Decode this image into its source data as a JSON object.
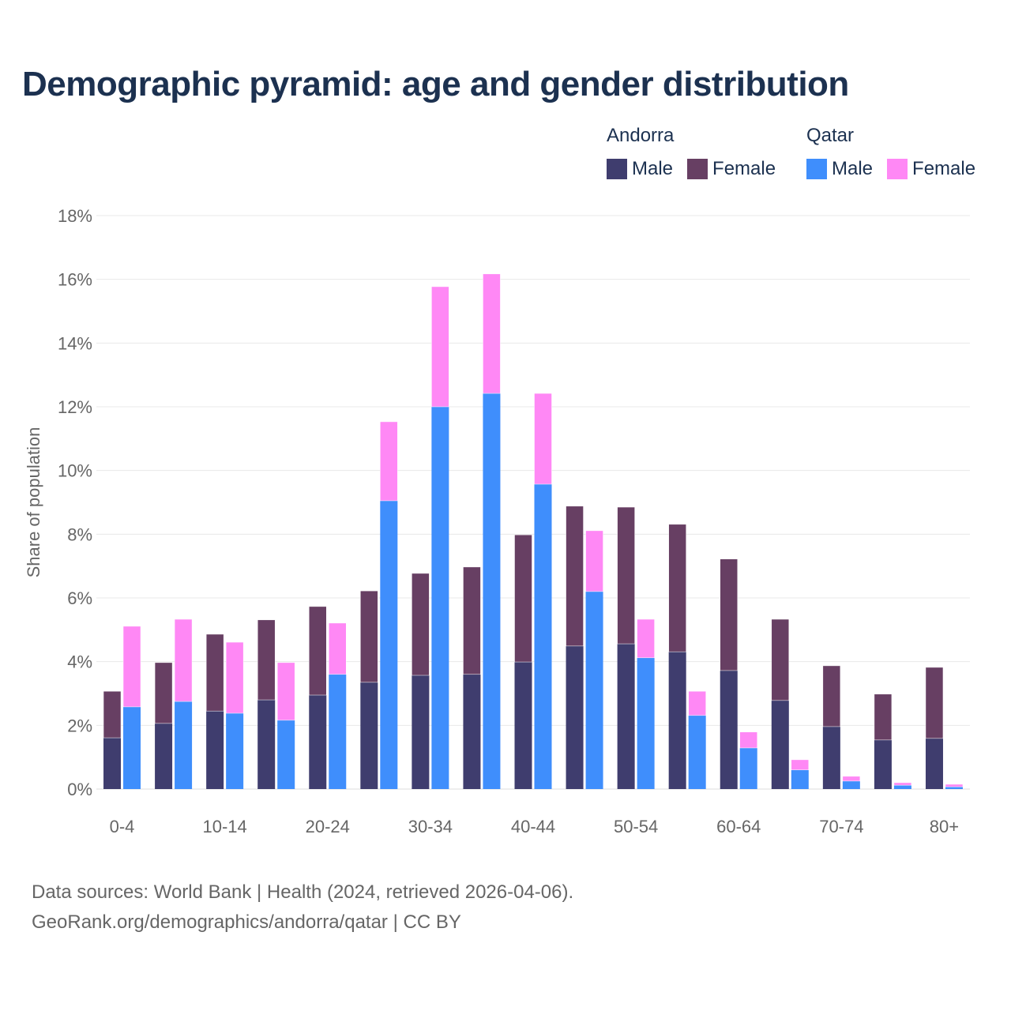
{
  "title": "Demographic pyramid: age and gender distribution",
  "legend": {
    "groups": [
      {
        "name": "Andorra",
        "items": [
          {
            "label": "Male",
            "color": "#3f3d6e"
          },
          {
            "label": "Female",
            "color": "#673f63"
          }
        ]
      },
      {
        "name": "Qatar",
        "items": [
          {
            "label": "Male",
            "color": "#3f8efc"
          },
          {
            "label": "Female",
            "color": "#ff88f5"
          }
        ]
      }
    ]
  },
  "footer": {
    "line1": "Data sources: World Bank | Health (2024, retrieved 2026-04-06).",
    "line2": "GeoRank.org/demographics/andorra/qatar | CC BY"
  },
  "chart_data": {
    "type": "bar",
    "stacked": true,
    "title": "Demographic pyramid: age and gender distribution",
    "xlabel": "",
    "ylabel": "Share of population",
    "ylim": [
      0,
      18
    ],
    "yticks": [
      "0%",
      "2%",
      "4%",
      "6%",
      "8%",
      "10%",
      "12%",
      "14%",
      "16%",
      "18%"
    ],
    "categories": [
      "0-4",
      "5-9",
      "10-14",
      "15-19",
      "20-24",
      "25-29",
      "30-34",
      "35-39",
      "40-44",
      "45-49",
      "50-54",
      "55-59",
      "60-64",
      "65-69",
      "70-74",
      "75-79",
      "80+"
    ],
    "xtick_labels": [
      "0-4",
      "",
      "10-14",
      "",
      "20-24",
      "",
      "30-34",
      "",
      "40-44",
      "",
      "50-54",
      "",
      "60-64",
      "",
      "70-74",
      "",
      "80+"
    ],
    "series": [
      {
        "name": "Andorra Male",
        "country": "Andorra",
        "stack": "Andorra",
        "color": "#3f3d6e",
        "values": [
          1.61,
          2.06,
          2.45,
          2.8,
          2.95,
          3.35,
          3.57,
          3.6,
          3.99,
          4.49,
          4.56,
          4.31,
          3.72,
          2.78,
          1.96,
          1.54,
          1.59
        ]
      },
      {
        "name": "Andorra Female",
        "country": "Andorra",
        "stack": "Andorra",
        "color": "#673f63",
        "values": [
          1.46,
          1.91,
          2.41,
          2.51,
          2.78,
          2.87,
          3.2,
          3.37,
          3.99,
          4.39,
          4.29,
          4.0,
          3.5,
          2.55,
          1.91,
          1.44,
          2.23
        ]
      },
      {
        "name": "Qatar Male",
        "country": "Qatar",
        "stack": "Qatar",
        "color": "#3f8efc",
        "values": [
          2.58,
          2.75,
          2.38,
          2.16,
          3.6,
          9.05,
          12.0,
          12.42,
          9.57,
          6.2,
          4.12,
          2.31,
          1.29,
          0.6,
          0.25,
          0.12,
          0.07
        ]
      },
      {
        "name": "Qatar Female",
        "country": "Qatar",
        "stack": "Qatar",
        "color": "#ff88f5",
        "values": [
          2.53,
          2.58,
          2.23,
          1.81,
          1.61,
          2.48,
          3.77,
          3.75,
          2.85,
          1.91,
          1.21,
          0.76,
          0.5,
          0.32,
          0.15,
          0.08,
          0.08
        ]
      }
    ],
    "grid": true,
    "legend_position": "top-right"
  }
}
